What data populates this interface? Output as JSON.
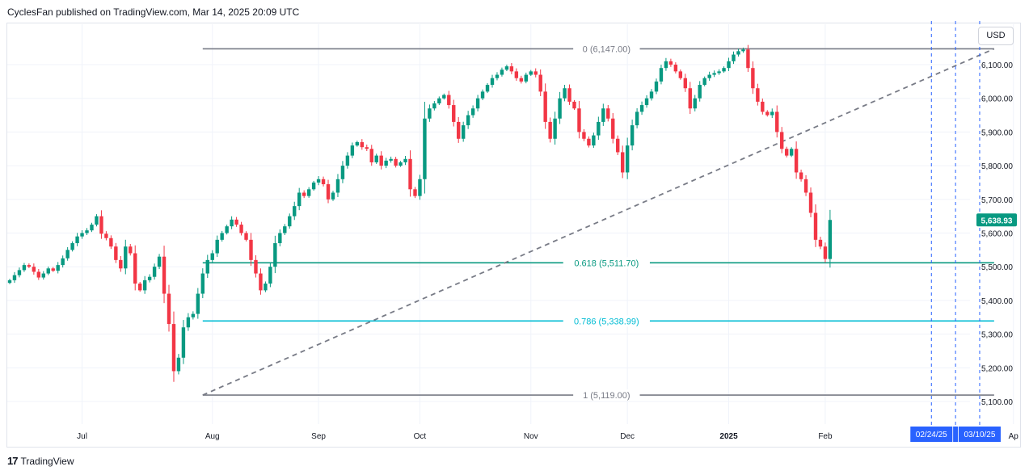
{
  "header": {
    "text": "CyclesFan published on TradingView.com, Mar 14, 2025 20:09 UTC"
  },
  "currency_label": "USD",
  "footer": {
    "logo_mark": "17",
    "brand": "TradingView"
  },
  "colors": {
    "up": "#089981",
    "down": "#f23645",
    "fib_0": "#787b86",
    "fib_618": "#089981",
    "fib_786": "#00bcd4",
    "fib_1": "#787b86",
    "vline": "#2962ff",
    "last_price_bg": "#089981",
    "date_label_bg": "#2962ff"
  },
  "chart_data": {
    "type": "candlestick",
    "y_range": [
      5040,
      6220
    ],
    "y_ticks": [
      {
        "v": 6100,
        "label": "6,100.00"
      },
      {
        "v": 6000,
        "label": "6,000.00"
      },
      {
        "v": 5900,
        "label": "5,900.00"
      },
      {
        "v": 5800,
        "label": "5,800.00"
      },
      {
        "v": 5700,
        "label": "5,700.00"
      },
      {
        "v": 5600,
        "label": "5,600.00"
      },
      {
        "v": 5500,
        "label": "5,500.00"
      },
      {
        "v": 5400,
        "label": "5,400.00"
      },
      {
        "v": 5300,
        "label": "5,300.00"
      },
      {
        "v": 5200,
        "label": "5,200.00"
      },
      {
        "v": 5100,
        "label": "5,100.00"
      }
    ],
    "x_ticks": [
      {
        "i": 15,
        "label": "Jul",
        "bold": false
      },
      {
        "i": 42,
        "label": "Aug",
        "bold": false
      },
      {
        "i": 64,
        "label": "Sep",
        "bold": false
      },
      {
        "i": 85,
        "label": "Oct",
        "bold": false
      },
      {
        "i": 108,
        "label": "Nov",
        "bold": false
      },
      {
        "i": 128,
        "label": "Dec",
        "bold": false
      },
      {
        "i": 149,
        "label": "2025",
        "bold": true
      },
      {
        "i": 169,
        "label": "Feb",
        "bold": false
      },
      {
        "i": 208,
        "label": "Ap",
        "bold": false
      }
    ],
    "closes": [
      5460,
      5475,
      5490,
      5505,
      5500,
      5485,
      5468,
      5480,
      5495,
      5488,
      5505,
      5525,
      5550,
      5570,
      5590,
      5600,
      5608,
      5625,
      5650,
      5598,
      5585,
      5560,
      5520,
      5495,
      5560,
      5540,
      5450,
      5430,
      5460,
      5470,
      5500,
      5530,
      5420,
      5330,
      5190,
      5230,
      5320,
      5350,
      5360,
      5420,
      5480,
      5520,
      5540,
      5580,
      5600,
      5620,
      5640,
      5625,
      5600,
      5580,
      5520,
      5480,
      5430,
      5450,
      5500,
      5570,
      5600,
      5620,
      5650,
      5680,
      5720,
      5710,
      5730,
      5750,
      5760,
      5745,
      5700,
      5720,
      5760,
      5800,
      5830,
      5860,
      5870,
      5855,
      5850,
      5810,
      5830,
      5800,
      5815,
      5820,
      5800,
      5810,
      5820,
      5730,
      5710,
      5760,
      5940,
      5970,
      5985,
      6000,
      6010,
      5980,
      5930,
      5880,
      5920,
      5950,
      5970,
      6000,
      6020,
      6040,
      6060,
      6070,
      6085,
      6095,
      6080,
      6060,
      6050,
      6070,
      6080,
      6070,
      6020,
      5930,
      5880,
      5940,
      6000,
      6030,
      5990,
      5970,
      5900,
      5880,
      5860,
      5890,
      5930,
      5970,
      5940,
      5880,
      5840,
      5780,
      5860,
      5920,
      5960,
      5980,
      6000,
      6020,
      6050,
      6090,
      6110,
      6100,
      6080,
      6060,
      6030,
      5970,
      6000,
      6040,
      6060,
      6070,
      6075,
      6080,
      6090,
      6110,
      6130,
      6140,
      6145,
      6090,
      6030,
      5990,
      5960,
      5950,
      5960,
      5900,
      5850,
      5830,
      5850,
      5780,
      5760,
      5720,
      5660,
      5580,
      5560,
      5523,
      5639
    ],
    "last_price": {
      "value": 5638.93,
      "label": "5,638.93"
    },
    "fib_levels": [
      {
        "ratio": "0",
        "price": 6147.0,
        "label": "0 (6,147.00)",
        "color_key": "fib_0"
      },
      {
        "ratio": "0.618",
        "price": 5511.7,
        "label": "0.618 (5,511.70)",
        "color_key": "fib_618"
      },
      {
        "ratio": "0.786",
        "price": 5338.99,
        "label": "0.786 (5,338.99)",
        "color_key": "fib_786"
      },
      {
        "ratio": "1",
        "price": 5119.0,
        "label": "1 (5,119.00)",
        "color_key": "fib_1"
      }
    ],
    "fib_span": {
      "from_i": 40,
      "to_i": 204
    },
    "trendline": {
      "from": {
        "i": 40,
        "v": 5119
      },
      "to": {
        "i": 204,
        "v": 6147
      }
    },
    "vertical_markers": [
      {
        "i": 191,
        "label": "02/24/25"
      },
      {
        "i": 196,
        "label": ""
      },
      {
        "i": 201,
        "label": "03/10/25"
      }
    ]
  }
}
